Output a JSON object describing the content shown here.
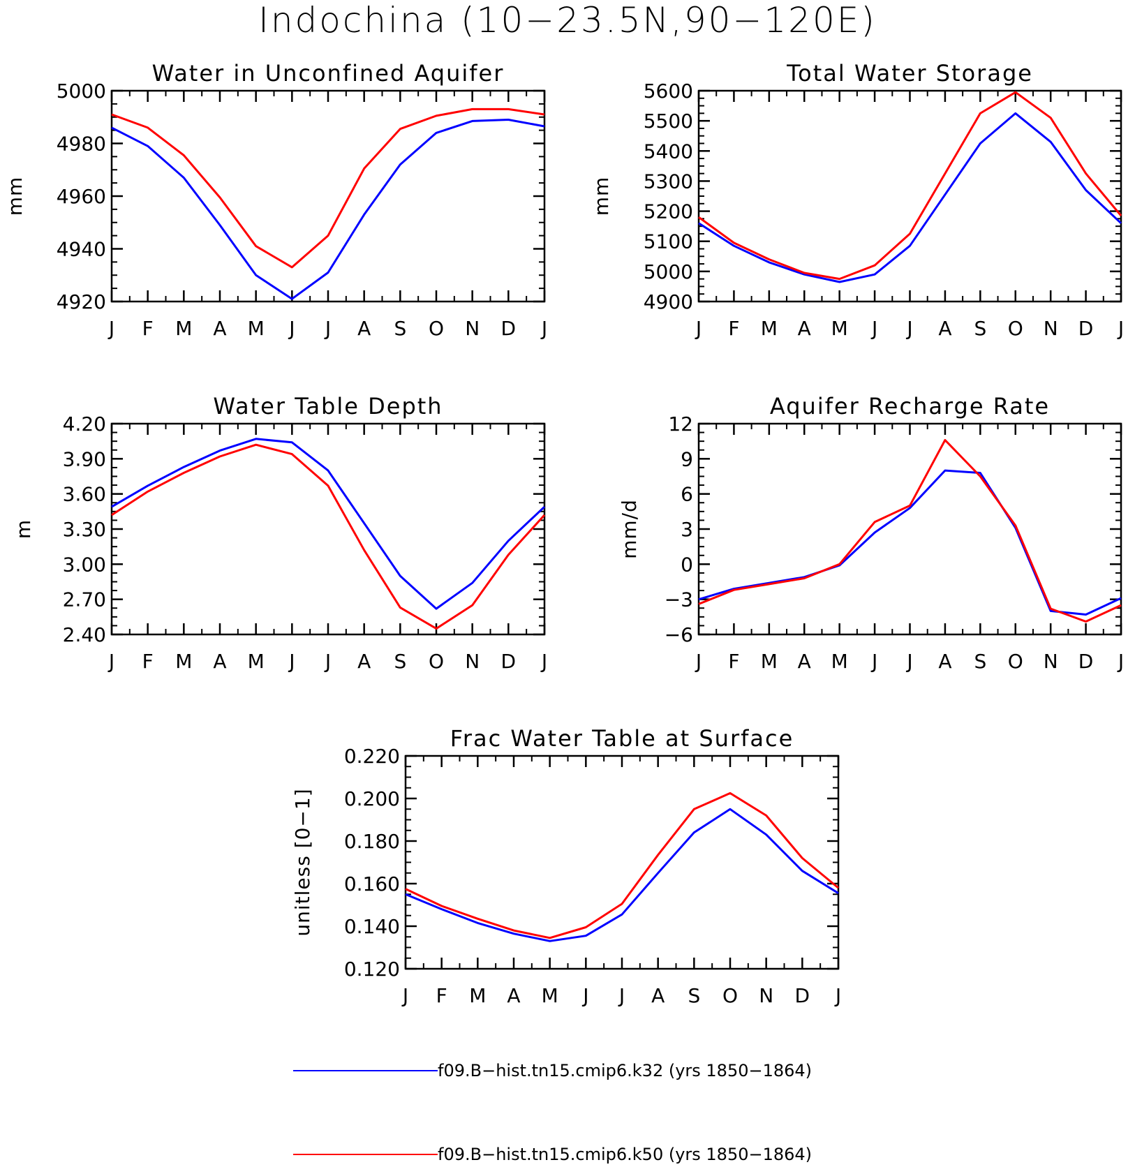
{
  "figure": {
    "title": "Indochina (10−23.5N,90−120E)"
  },
  "colors": {
    "series_1": "#0000ff",
    "series_2": "#ff0000",
    "axis": "#000000"
  },
  "legend": {
    "placement": "bottom",
    "entries": [
      {
        "label": "f09.B−hist.tn15.cmip6.k32 (yrs 1850−1864)",
        "color": "#0000ff"
      },
      {
        "label": "f09.B−hist.tn15.cmip6.k50 (yrs 1850−1864)",
        "color": "#ff0000"
      }
    ]
  },
  "chart_data": [
    {
      "id": "panel-aquifer",
      "type": "line",
      "title": "Water in Unconfined Aquifer",
      "ylabel": "mm",
      "ylim": [
        4920,
        5000
      ],
      "yticks": [
        "4920",
        "4940",
        "4960",
        "4980",
        "5000"
      ],
      "xticks": [
        "J",
        "F",
        "M",
        "A",
        "M",
        "J",
        "J",
        "A",
        "S",
        "O",
        "N",
        "D",
        "J"
      ],
      "grid": false,
      "series": [
        {
          "color": "#0000ff",
          "values": [
            4986,
            4979,
            4967,
            4949,
            4930,
            4921,
            4931,
            4953,
            4972,
            4984,
            4988.5,
            4989,
            4986.5
          ]
        },
        {
          "color": "#ff0000",
          "values": [
            4991,
            4986,
            4975.5,
            4959.5,
            4941,
            4933,
            4945,
            4970.5,
            4985.5,
            4990.5,
            4993,
            4993,
            4991
          ]
        }
      ]
    },
    {
      "id": "panel-storage",
      "type": "line",
      "title": "Total Water Storage",
      "ylabel": "mm",
      "ylim": [
        4900,
        5600
      ],
      "yticks": [
        "4900",
        "5000",
        "5100",
        "5200",
        "5300",
        "5400",
        "5500",
        "5600"
      ],
      "xticks": [
        "J",
        "F",
        "M",
        "A",
        "M",
        "J",
        "J",
        "A",
        "S",
        "O",
        "N",
        "D",
        "J"
      ],
      "grid": false,
      "series": [
        {
          "color": "#0000ff",
          "values": [
            5160,
            5085,
            5030,
            4990,
            4965,
            4990,
            5085,
            5255,
            5425,
            5525,
            5430,
            5270,
            5160
          ]
        },
        {
          "color": "#ff0000",
          "values": [
            5180,
            5095,
            5040,
            4995,
            4975,
            5020,
            5125,
            5325,
            5525,
            5595,
            5510,
            5325,
            5185
          ]
        }
      ]
    },
    {
      "id": "panel-wtd",
      "type": "line",
      "title": "Water Table Depth",
      "ylabel": "m",
      "ylim": [
        2.4,
        4.2
      ],
      "yticks": [
        "2.40",
        "2.70",
        "3.00",
        "3.30",
        "3.60",
        "3.90",
        "4.20"
      ],
      "xticks": [
        "J",
        "F",
        "M",
        "A",
        "M",
        "J",
        "J",
        "A",
        "S",
        "O",
        "N",
        "D",
        "J"
      ],
      "grid": false,
      "series": [
        {
          "color": "#0000ff",
          "values": [
            3.49,
            3.67,
            3.83,
            3.97,
            4.07,
            4.04,
            3.8,
            3.35,
            2.9,
            2.62,
            2.84,
            3.2,
            3.49
          ]
        },
        {
          "color": "#ff0000",
          "values": [
            3.42,
            3.62,
            3.78,
            3.92,
            4.02,
            3.94,
            3.67,
            3.12,
            2.63,
            2.45,
            2.65,
            3.08,
            3.42
          ]
        }
      ]
    },
    {
      "id": "panel-recharge",
      "type": "line",
      "title": "Aquifer Recharge Rate",
      "ylabel": "mm/d",
      "ylim": [
        -6,
        12
      ],
      "yticks": [
        "−6",
        "−3",
        "0",
        "3",
        "6",
        "9",
        "12"
      ],
      "xticks": [
        "J",
        "F",
        "M",
        "A",
        "M",
        "J",
        "J",
        "A",
        "S",
        "O",
        "N",
        "D",
        "J"
      ],
      "grid": false,
      "series": [
        {
          "color": "#0000ff",
          "values": [
            -3,
            -2.1,
            -1.6,
            -1.1,
            -0.1,
            2.7,
            4.8,
            8.0,
            7.8,
            3.1,
            -4.0,
            -4.3,
            -2.9
          ]
        },
        {
          "color": "#ff0000",
          "values": [
            -3.4,
            -2.2,
            -1.7,
            -1.2,
            0.0,
            3.6,
            5.0,
            10.6,
            7.5,
            3.3,
            -3.8,
            -4.9,
            -3.5
          ]
        }
      ]
    },
    {
      "id": "panel-frac",
      "type": "line",
      "title": "Frac Water Table at Surface",
      "ylabel": "unitless [0−1]",
      "ylim": [
        0.12,
        0.22
      ],
      "yticks": [
        "0.120",
        "0.140",
        "0.160",
        "0.180",
        "0.200",
        "0.220"
      ],
      "xticks": [
        "J",
        "F",
        "M",
        "A",
        "M",
        "J",
        "J",
        "A",
        "S",
        "O",
        "N",
        "D",
        "J"
      ],
      "grid": false,
      "series": [
        {
          "color": "#0000ff",
          "values": [
            0.155,
            0.148,
            0.1415,
            0.1365,
            0.133,
            0.1355,
            0.1455,
            0.165,
            0.184,
            0.195,
            0.183,
            0.166,
            0.1555
          ]
        },
        {
          "color": "#ff0000",
          "values": [
            0.1575,
            0.1495,
            0.1435,
            0.138,
            0.1345,
            0.1395,
            0.1505,
            0.1735,
            0.195,
            0.2025,
            0.192,
            0.172,
            0.158
          ]
        }
      ]
    }
  ]
}
